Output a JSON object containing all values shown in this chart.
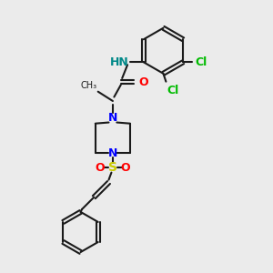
{
  "bg_color": "#ebebeb",
  "bond_color": "#1a1a1a",
  "N_color": "#0000ff",
  "O_color": "#ff0000",
  "S_color": "#cccc00",
  "Cl_color": "#00bb00",
  "H_color": "#008888",
  "line_width": 1.5,
  "font_size": 9,
  "xlim": [
    0,
    10
  ],
  "ylim": [
    0,
    10
  ]
}
